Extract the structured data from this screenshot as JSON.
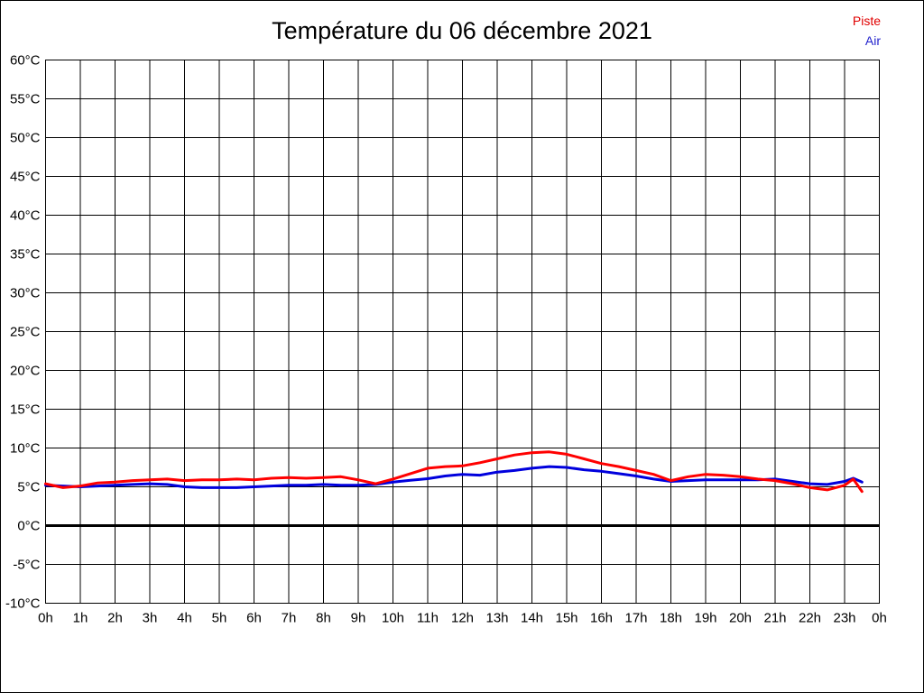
{
  "page": {
    "title": "Température du 06 décembre 2021"
  },
  "legend": {
    "position": "top-right",
    "items": [
      {
        "label": "Piste",
        "color": "#e00000"
      },
      {
        "label": "Air",
        "color": "#2222cc"
      }
    ]
  },
  "chart_data": {
    "type": "line",
    "title": "Température du 06 décembre 2021",
    "xlabel": "",
    "ylabel": "",
    "xlim": [
      0,
      24
    ],
    "ylim": [
      -10,
      60
    ],
    "grid": true,
    "legend_position": "top-right",
    "zero_line": {
      "value": 0,
      "color": "#000000",
      "thick": true
    },
    "x_tick_labels": [
      "0h",
      "1h",
      "2h",
      "3h",
      "4h",
      "5h",
      "6h",
      "7h",
      "8h",
      "9h",
      "10h",
      "11h",
      "12h",
      "13h",
      "14h",
      "15h",
      "16h",
      "17h",
      "18h",
      "19h",
      "20h",
      "21h",
      "22h",
      "23h",
      "0h"
    ],
    "y_tick_labels": [
      "60°C",
      "55°C",
      "50°C",
      "45°C",
      "40°C",
      "35°C",
      "30°C",
      "25°C",
      "20°C",
      "15°C",
      "10°C",
      "5°C",
      "0°C",
      "-5°C",
      "-10°C"
    ],
    "y_tick_values": [
      60,
      55,
      50,
      45,
      40,
      35,
      30,
      25,
      20,
      15,
      10,
      5,
      0,
      -5,
      -10
    ],
    "x_tick_values": [
      0,
      1,
      2,
      3,
      4,
      5,
      6,
      7,
      8,
      9,
      10,
      11,
      12,
      13,
      14,
      15,
      16,
      17,
      18,
      19,
      20,
      21,
      22,
      23,
      24
    ],
    "x": [
      0,
      0.5,
      1,
      1.5,
      2,
      2.5,
      3,
      3.5,
      4,
      4.5,
      5,
      5.5,
      6,
      6.5,
      7,
      7.5,
      8,
      8.5,
      9,
      9.5,
      10,
      10.5,
      11,
      11.5,
      12,
      12.5,
      13,
      13.5,
      14,
      14.5,
      15,
      15.5,
      16,
      16.5,
      17,
      17.5,
      18,
      18.5,
      19,
      19.5,
      20,
      20.5,
      21,
      21.5,
      22,
      22.5,
      23,
      23.25,
      23.5
    ],
    "series": [
      {
        "name": "Piste",
        "color": "#ff0000",
        "values": [
          5.4,
          4.9,
          5.1,
          5.5,
          5.6,
          5.8,
          5.9,
          6.0,
          5.8,
          5.9,
          5.9,
          6.0,
          5.9,
          6.1,
          6.2,
          6.1,
          6.2,
          6.3,
          5.9,
          5.4,
          6.0,
          6.7,
          7.4,
          7.6,
          7.7,
          8.1,
          8.6,
          9.1,
          9.4,
          9.5,
          9.2,
          8.6,
          8.0,
          7.6,
          7.1,
          6.6,
          5.8,
          6.3,
          6.6,
          6.5,
          6.3,
          6.0,
          5.8,
          5.4,
          4.9,
          4.6,
          5.2,
          6.0,
          4.4
        ]
      },
      {
        "name": "Air",
        "color": "#0000dd",
        "values": [
          5.2,
          5.1,
          5.0,
          5.1,
          5.2,
          5.3,
          5.4,
          5.3,
          5.0,
          4.9,
          4.9,
          4.9,
          5.0,
          5.1,
          5.2,
          5.2,
          5.3,
          5.2,
          5.2,
          5.3,
          5.6,
          5.85,
          6.05,
          6.4,
          6.6,
          6.5,
          6.9,
          7.1,
          7.4,
          7.6,
          7.5,
          7.2,
          7.0,
          6.7,
          6.4,
          6.0,
          5.7,
          5.8,
          5.9,
          5.9,
          5.9,
          5.9,
          6.0,
          5.7,
          5.4,
          5.3,
          5.7,
          6.1,
          5.6
        ]
      }
    ]
  }
}
